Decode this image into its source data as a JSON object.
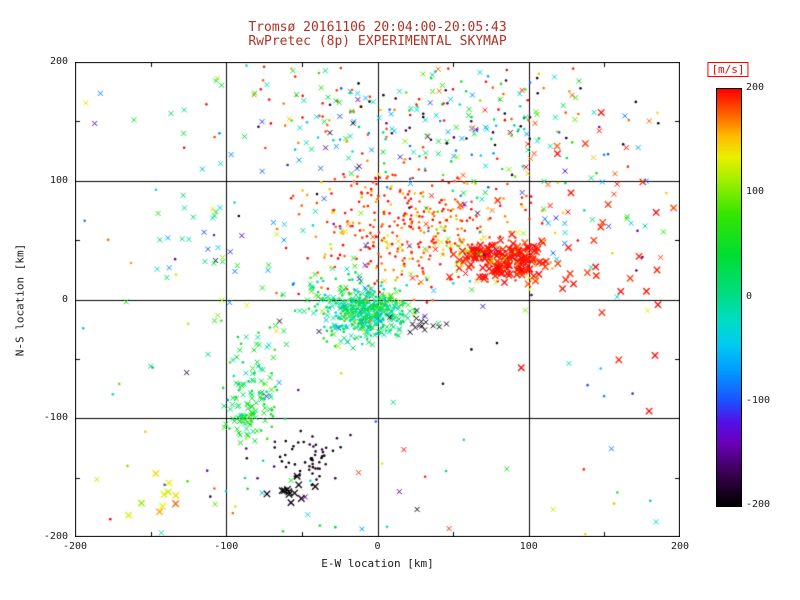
{
  "title": {
    "line1": "Tromsø 20161106 20:04:00-20:05:43",
    "line2": "RwPretec (8p) EXPERIMENTAL SKYMAP"
  },
  "colors": {
    "title": "#b03226",
    "axis": "#000000",
    "tick_label": "#1a1a1a",
    "colorbar_unit": "#ff0000",
    "background": "#ffffff"
  },
  "axes": {
    "x": {
      "label": "E-W location [km]",
      "range": [
        -200,
        200
      ],
      "ticks": [
        -200,
        -100,
        0,
        100,
        200
      ],
      "tick_labels": [
        "-200",
        "-100",
        "0",
        "100",
        "200"
      ],
      "gridlines": [
        -100,
        0,
        100
      ],
      "minor_ticks": [
        -150,
        -50,
        50,
        150
      ]
    },
    "y": {
      "label": "N-S location [km]",
      "range": [
        -200,
        200
      ],
      "ticks": [
        -200,
        -100,
        0,
        100,
        200
      ],
      "tick_labels": [
        "-200",
        "-100",
        "0",
        "100",
        "200"
      ],
      "gridlines": [
        -100,
        0,
        100
      ],
      "minor_ticks": [
        -150,
        -50,
        50,
        150
      ]
    }
  },
  "colorbar": {
    "label": "[m/s]",
    "range": [
      -200,
      200
    ],
    "ticks": [
      200,
      100,
      0,
      -100,
      -200
    ],
    "tick_labels": [
      "200",
      "100",
      "0",
      "-100",
      "-200"
    ]
  },
  "chart_data": {
    "type": "scatter",
    "title": "Tromsø 20161106 20:04:00-20:05:43 — RwPretec (8p) EXPERIMENTAL SKYMAP",
    "xlabel": "E-W location [km]",
    "ylabel": "N-S location [km]",
    "xlim": [
      -200,
      200
    ],
    "ylim": [
      -200,
      200
    ],
    "grid": true,
    "color_scale": {
      "units": "m/s",
      "range": [
        -200,
        200
      ],
      "stops": [
        [
          -200,
          "#000000"
        ],
        [
          -170,
          "#38004e"
        ],
        [
          -140,
          "#6a00b8"
        ],
        [
          -120,
          "#5510e8"
        ],
        [
          -100,
          "#1e50ff"
        ],
        [
          -70,
          "#009cff"
        ],
        [
          -45,
          "#00ccf0"
        ],
        [
          -20,
          "#00ddc0"
        ],
        [
          0,
          "#00dd88"
        ],
        [
          40,
          "#00dd33"
        ],
        [
          80,
          "#33e600"
        ],
        [
          110,
          "#99ee00"
        ],
        [
          135,
          "#eaf000"
        ],
        [
          155,
          "#ffbb00"
        ],
        [
          175,
          "#ff6600"
        ],
        [
          200,
          "#ff0000"
        ]
      ]
    },
    "seed": 42,
    "clusters": [
      {
        "n": 380,
        "cx": -6,
        "cy": -12,
        "sx": 13,
        "sy": 11,
        "v": 5,
        "vs": 35,
        "marker": "mix"
      },
      {
        "n": 120,
        "cx": -18,
        "cy": -2,
        "sx": 18,
        "sy": 14,
        "v": 30,
        "vs": 50,
        "marker": "mix"
      },
      {
        "n": 260,
        "cx": 25,
        "cy": 55,
        "sx": 38,
        "sy": 22,
        "v": 185,
        "vs": 18,
        "marker": "dot"
      },
      {
        "n": 160,
        "cx": 85,
        "cy": 33,
        "sx": 14,
        "sy": 9,
        "v": 196,
        "vs": 8,
        "marker": "x",
        "s": 3.2
      },
      {
        "n": 90,
        "cx": 55,
        "cy": 40,
        "sx": 30,
        "sy": 18,
        "v": 140,
        "vs": 35,
        "marker": "mix"
      },
      {
        "n": 80,
        "cx": 0,
        "cy": 92,
        "sx": 30,
        "sy": 12,
        "v": 182,
        "vs": 20,
        "marker": "dot"
      },
      {
        "n": 90,
        "cx": 35,
        "cy": 150,
        "sx": 55,
        "sy": 28,
        "v": -50,
        "vs": 45,
        "marker": "mix"
      },
      {
        "n": 70,
        "cx": 15,
        "cy": 160,
        "sx": 60,
        "sy": 25,
        "v": 185,
        "vs": 15,
        "marker": "dot"
      },
      {
        "n": 60,
        "cx": 55,
        "cy": 135,
        "sx": 50,
        "sy": 30,
        "v": 60,
        "vs": 45,
        "marker": "mix"
      },
      {
        "n": 35,
        "cx": 25,
        "cy": 150,
        "sx": 60,
        "sy": 30,
        "v": -185,
        "vs": 12,
        "marker": "dot"
      },
      {
        "n": 90,
        "cx": -80,
        "cy": -72,
        "sx": 9,
        "sy": 26,
        "v": 25,
        "vs": 30,
        "marker": "mix"
      },
      {
        "n": 45,
        "cx": -86,
        "cy": -98,
        "sx": 6,
        "sy": 10,
        "v": 45,
        "vs": 25,
        "marker": "x"
      },
      {
        "n": 55,
        "cx": -45,
        "cy": -133,
        "sx": 13,
        "sy": 11,
        "v": -190,
        "vs": 8,
        "marker": "dot"
      },
      {
        "n": 12,
        "cx": -57,
        "cy": -160,
        "sx": 8,
        "sy": 6,
        "v": -196,
        "vs": 4,
        "marker": "x",
        "s": 3.2
      },
      {
        "n": 14,
        "cx": 30,
        "cy": -17,
        "sx": 8,
        "sy": 5,
        "v": -190,
        "vs": 8,
        "marker": "x"
      },
      {
        "n": 35,
        "cx": 145,
        "cy": 40,
        "sx": 35,
        "sy": 70,
        "v": 192,
        "vs": 8,
        "marker": "x",
        "s": 3.2
      },
      {
        "n": 40,
        "cx": -100,
        "cy": 30,
        "sx": 30,
        "sy": 35,
        "v": 0,
        "vs": 60,
        "marker": "x"
      },
      {
        "n": 10,
        "cx": -148,
        "cy": -168,
        "sx": 12,
        "sy": 8,
        "v": 135,
        "vs": 20,
        "marker": "x",
        "s": 3.2
      },
      {
        "n": 30,
        "cx": 0,
        "cy": 20,
        "sx": 110,
        "sy": 95,
        "v": -110,
        "vs": 40,
        "marker": "mix"
      },
      {
        "n": 25,
        "cx": 120,
        "cy": 120,
        "sx": 45,
        "sy": 40,
        "v": 188,
        "vs": 12,
        "marker": "x"
      },
      {
        "n": 20,
        "cx": -60,
        "cy": 170,
        "sx": 40,
        "sy": 20,
        "v": 60,
        "vs": 80,
        "marker": "x"
      },
      {
        "n": 18,
        "cx": 140,
        "cy": 75,
        "sx": 30,
        "sy": 25,
        "v": -40,
        "vs": 50,
        "marker": "x"
      },
      {
        "n": 140,
        "dist": "uniform",
        "x": [
          -195,
          195
        ],
        "y": [
          -198,
          198
        ],
        "vr": [
          -200,
          200
        ],
        "marker": "mix"
      }
    ]
  }
}
